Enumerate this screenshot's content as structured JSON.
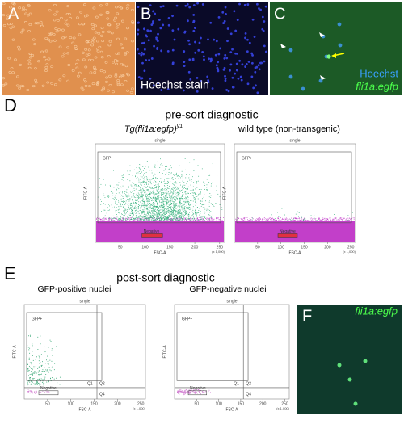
{
  "panels": {
    "A": {
      "label": "A"
    },
    "B": {
      "label": "B",
      "caption": "Hoechst stain"
    },
    "C": {
      "label": "C",
      "legend": [
        "Hoechst",
        "fli1a:egfp"
      ]
    },
    "D": {
      "label": "D",
      "title": "pre-sort diagnostic",
      "plots": [
        {
          "title": "Tg(fli1a:egfp)",
          "title_sup": "y1",
          "header": "single",
          "gate": "GFP+",
          "negative": "Negative",
          "x_axis": "FSC-A",
          "y_axis": "FITC-A",
          "x_ticks": [
            "50",
            "100",
            "150",
            "200",
            "250"
          ],
          "x_unit": "(x 1,000)"
        },
        {
          "title": "wild type (non-transgenic)",
          "header": "single",
          "gate": "GFP+",
          "negative": "Negative",
          "x_axis": "FSC-A",
          "y_axis": "FITC-A",
          "x_ticks": [
            "50",
            "100",
            "150",
            "200",
            "250"
          ],
          "x_unit": "(x 1,000)"
        }
      ]
    },
    "E": {
      "label": "E",
      "title": "post-sort diagnostic",
      "plots": [
        {
          "title": "GFP-positive nuclei",
          "header": "single",
          "gate": "GFP+",
          "negative": "Negative",
          "quadrants": [
            "Q1",
            "Q2",
            "Q4"
          ],
          "x_axis": "FSC-A",
          "y_axis": "FITC-A",
          "x_ticks": [
            "50",
            "100",
            "150",
            "200",
            "250"
          ],
          "x_unit": "(x 1,000)"
        },
        {
          "title": "GFP-negative nuclei",
          "header": "single",
          "gate": "GFP+",
          "negative": "Negative",
          "quadrants": [
            "Q1",
            "Q2",
            "Q4"
          ],
          "x_axis": "FSC-A",
          "y_axis": "FITC-A",
          "x_ticks": [
            "50",
            "100",
            "150",
            "200",
            "250"
          ],
          "x_unit": "(x 1,000)"
        }
      ]
    },
    "F": {
      "label": "F",
      "caption": "fli1a:egfp"
    }
  }
}
